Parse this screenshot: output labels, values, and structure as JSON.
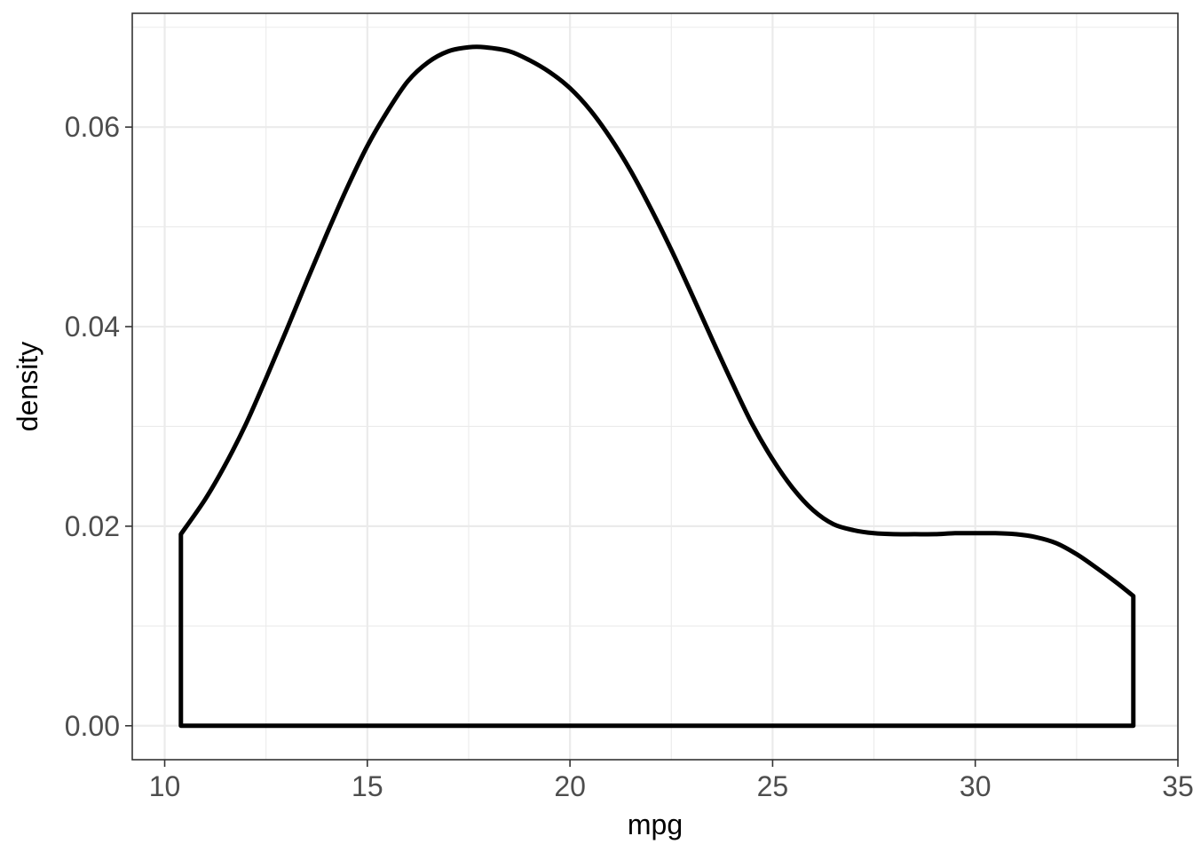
{
  "chart_data": {
    "type": "area",
    "title": "",
    "xlabel": "mpg",
    "ylabel": "density",
    "xlim": [
      9.2,
      35.0
    ],
    "ylim": [
      -0.0034,
      0.0714
    ],
    "x_ticks": [
      10,
      15,
      20,
      25,
      30,
      35
    ],
    "x_tick_labels": [
      "10",
      "15",
      "20",
      "25",
      "30",
      "35"
    ],
    "y_ticks": [
      0.0,
      0.02,
      0.04,
      0.06
    ],
    "y_tick_labels": [
      "0.00",
      "0.02",
      "0.04",
      "0.06"
    ],
    "grid": true,
    "legend": "none",
    "series": [
      {
        "x": [
          10.4,
          11.0,
          11.5,
          12.0,
          12.5,
          13.0,
          13.5,
          14.0,
          14.5,
          15.0,
          15.5,
          16.0,
          16.5,
          17.0,
          17.5,
          17.9,
          18.5,
          19.0,
          19.5,
          20.0,
          20.5,
          21.0,
          21.5,
          22.0,
          22.5,
          23.0,
          23.5,
          24.0,
          24.5,
          25.0,
          25.5,
          26.0,
          26.5,
          27.0,
          27.5,
          28.0,
          28.5,
          29.0,
          29.5,
          30.0,
          30.5,
          31.0,
          31.5,
          32.0,
          32.5,
          33.0,
          33.5,
          33.9
        ],
        "y": [
          0.0192,
          0.0227,
          0.0262,
          0.0302,
          0.0348,
          0.0396,
          0.0445,
          0.0493,
          0.0539,
          0.0581,
          0.0616,
          0.0646,
          0.0665,
          0.0676,
          0.068,
          0.068,
          0.0676,
          0.0667,
          0.0655,
          0.0639,
          0.0617,
          0.0589,
          0.0556,
          0.0518,
          0.0477,
          0.0433,
          0.0388,
          0.0344,
          0.0302,
          0.0267,
          0.0238,
          0.0216,
          0.0202,
          0.0196,
          0.0193,
          0.0192,
          0.0192,
          0.0192,
          0.0193,
          0.0193,
          0.0193,
          0.0192,
          0.0189,
          0.0183,
          0.0172,
          0.0158,
          0.0143,
          0.013
        ]
      }
    ]
  }
}
